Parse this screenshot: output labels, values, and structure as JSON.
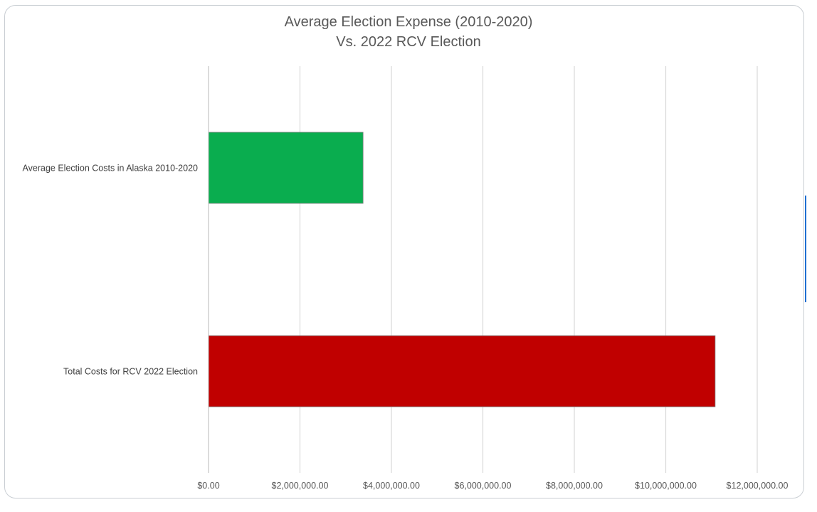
{
  "chart_data": {
    "type": "bar",
    "orientation": "horizontal",
    "title_line1": "Average Election Expense (2010-2020)",
    "title_line2": "Vs. 2022 RCV Election",
    "categories": [
      "Average Election Costs in Alaska 2010-2020",
      "Total Costs for RCV 2022 Election"
    ],
    "values": [
      3380000,
      11080000
    ],
    "colors": [
      "#0aad4f",
      "#c00000"
    ],
    "xlim": [
      0,
      12000000
    ],
    "ticks": [
      0,
      2000000,
      4000000,
      6000000,
      8000000,
      10000000,
      12000000
    ],
    "tick_labels": [
      "$0.00",
      "$2,000,000.00",
      "$4,000,000.00",
      "$6,000,000.00",
      "$8,000,000.00",
      "$10,000,000.00",
      "$12,000,000.00"
    ],
    "grid": true,
    "legend": "none"
  }
}
